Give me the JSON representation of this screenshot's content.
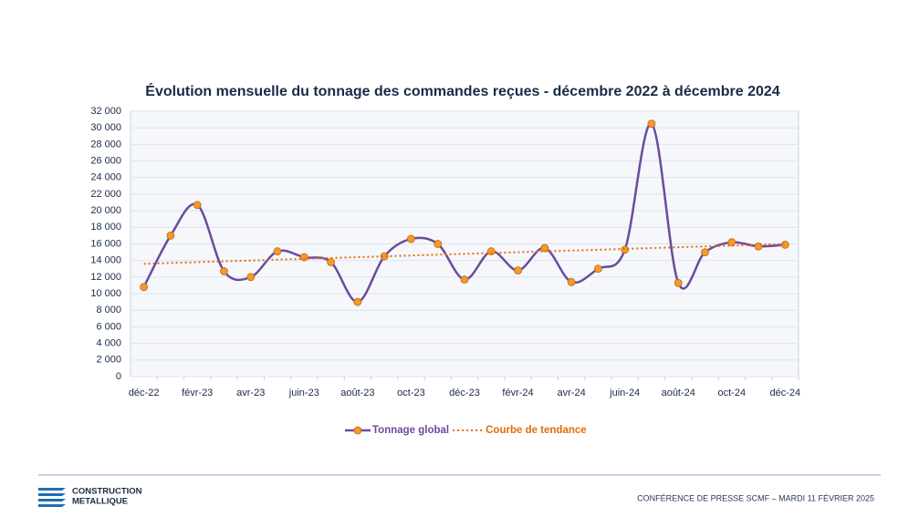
{
  "chart_data": {
    "type": "line",
    "title": "Évolution mensuelle du tonnage des commandes reçues - décembre 2022  à décembre 2024",
    "categories": [
      "déc-22",
      null,
      "févr-23",
      null,
      "avr-23",
      null,
      "juin-23",
      null,
      "août-23",
      null,
      "oct-23",
      null,
      "déc-23",
      null,
      "févr-24",
      null,
      "avr-24",
      null,
      "juin-24",
      null,
      "août-24",
      null,
      "oct-24",
      null,
      "déc-24"
    ],
    "series": [
      {
        "name": "Tonnage global",
        "color": "#6b4b9e",
        "marker_color": "#f39a2b",
        "values": [
          10800,
          17000,
          20700,
          12700,
          12000,
          15100,
          14400,
          13800,
          9000,
          14500,
          16600,
          16000,
          11700,
          15100,
          12800,
          15500,
          11400,
          13000,
          15300,
          30500,
          11300,
          15000,
          16200,
          15700,
          15900
        ]
      },
      {
        "name": "Courbe de tendance",
        "color": "#e46c0a",
        "values": [
          13600,
          13700,
          13800,
          13900,
          14000,
          14100,
          14200,
          14300,
          14400,
          14500,
          14600,
          14700,
          14800,
          14900,
          15000,
          15100,
          15200,
          15300,
          15400,
          15500,
          15600,
          15700,
          15800,
          15900,
          16000
        ]
      }
    ],
    "ylim": [
      0,
      32000
    ],
    "yticks": [
      0,
      {
        "value": 2000,
        "label": "2 000"
      },
      {
        "value": 4000,
        "label": "4 000"
      },
      {
        "value": 6000,
        "label": "6 000"
      },
      {
        "value": 8000,
        "label": "8 000"
      },
      {
        "value": 10000,
        "label": "10 000"
      },
      {
        "value": 12000,
        "label": "12 000"
      },
      {
        "value": 14000,
        "label": "14 000"
      },
      {
        "value": 16000,
        "label": "16 000"
      },
      {
        "value": 18000,
        "label": "18 000"
      },
      {
        "value": 20000,
        "label": "20 000"
      },
      {
        "value": 22000,
        "label": "22 000"
      },
      {
        "value": 24000,
        "label": "24 000"
      },
      {
        "value": 26000,
        "label": "26 000"
      },
      {
        "value": 28000,
        "label": "28 000"
      },
      {
        "value": 30000,
        "label": "30 000"
      },
      {
        "value": 32000,
        "label": "32 000"
      }
    ],
    "grid": true,
    "legend": "bottom"
  },
  "footer": {
    "logo_line1": "CONSTRUCTION",
    "logo_line2": "METALLIQUE",
    "caption": "CONFÉRENCE DE PRESSE SCMF – MARDI 11 FÉVRIER 2025"
  }
}
